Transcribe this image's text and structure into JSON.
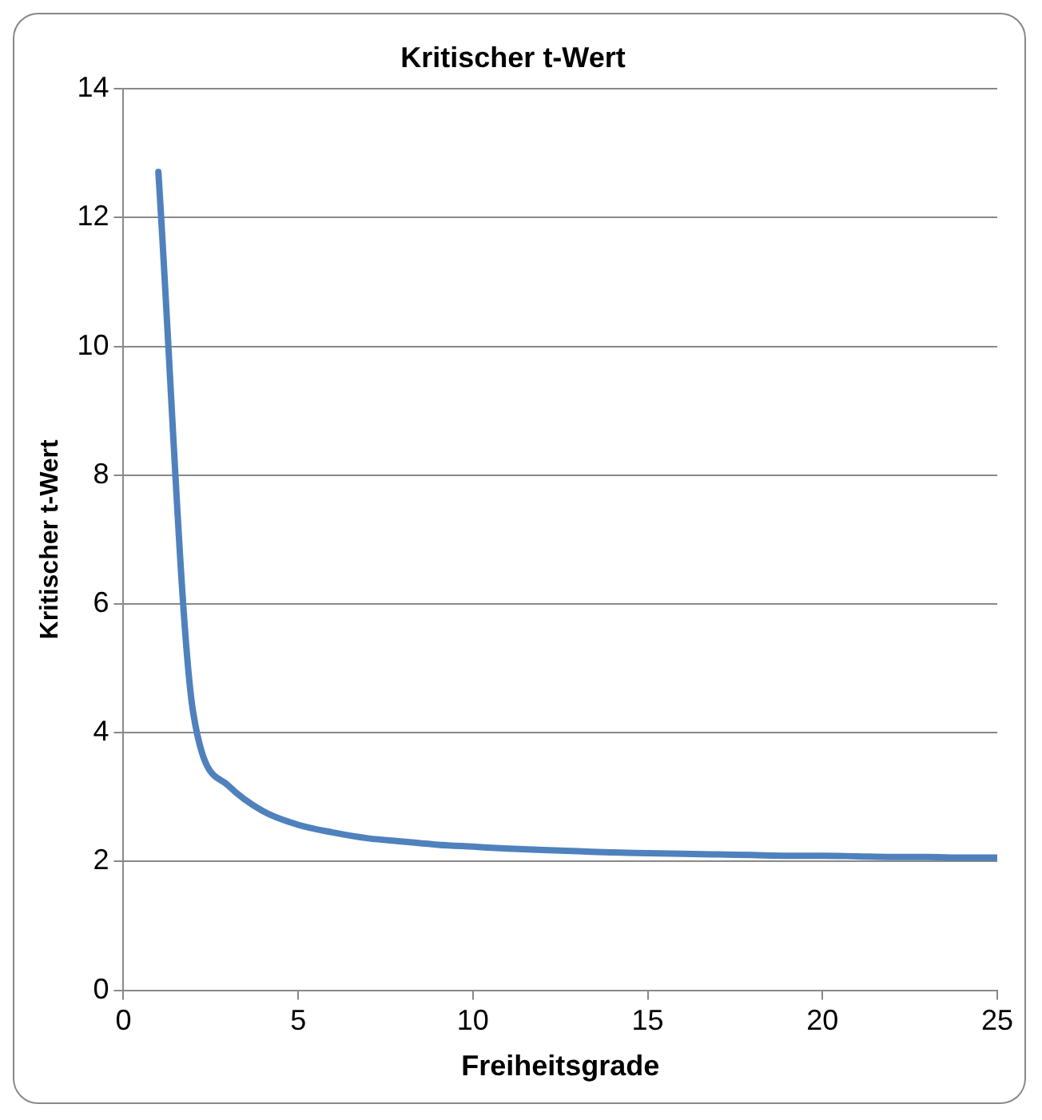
{
  "chart_data": {
    "type": "line",
    "title": "Kritischer t-Wert",
    "xlabel": "Freiheitsgrade",
    "ylabel": "Kritischer t-Wert",
    "x": [
      1,
      2,
      3,
      4,
      5,
      6,
      7,
      8,
      9,
      10,
      11,
      12,
      13,
      14,
      15,
      16,
      17,
      18,
      19,
      20,
      21,
      22,
      23,
      24,
      25
    ],
    "series": [
      {
        "color": "#4f81bd",
        "values": [
          12.71,
          4.3,
          3.18,
          2.78,
          2.57,
          2.45,
          2.36,
          2.31,
          2.26,
          2.23,
          2.2,
          2.18,
          2.16,
          2.14,
          2.13,
          2.12,
          2.11,
          2.1,
          2.09,
          2.09,
          2.08,
          2.07,
          2.07,
          2.06,
          2.06
        ]
      }
    ],
    "xlim": [
      0,
      25
    ],
    "xticks": [
      0,
      5,
      10,
      15,
      20,
      25
    ],
    "ylim": [
      0,
      14
    ],
    "yticks": [
      0,
      2,
      4,
      6,
      8,
      10,
      12,
      14
    ],
    "grid": "y",
    "legend": false,
    "marker": "none",
    "line_style": "solid"
  }
}
